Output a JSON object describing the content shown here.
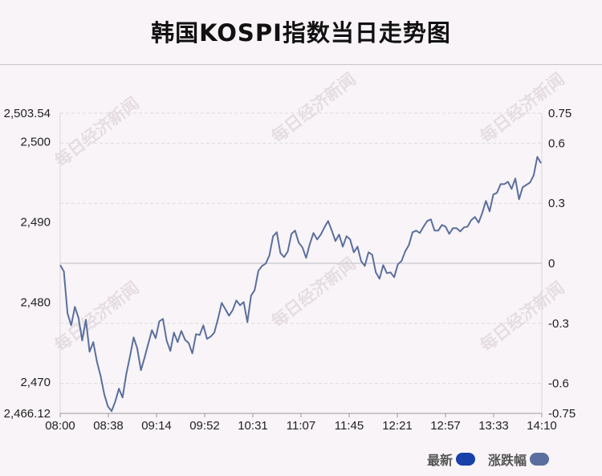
{
  "title": "韩国KOSPI指数当日走势图",
  "watermark": "每日经济新闻",
  "legend": {
    "latest_label": "最新",
    "change_label": "涨跌幅",
    "latest_color": "#1740a8",
    "change_color": "#5b6f9e"
  },
  "colors": {
    "line": "#5b6f9e",
    "baseline": "#cfcfd6",
    "grid": "#dcdcdc"
  },
  "chart_data": {
    "type": "line",
    "title": "韩国KOSPI指数当日走势图",
    "xlabel": "",
    "ylabel": "",
    "x_ticks": [
      "08:00",
      "08:38",
      "09:14",
      "09:52",
      "10:31",
      "11:07",
      "11:45",
      "12:21",
      "12:57",
      "13:33",
      "14:10"
    ],
    "y_left_ticks": [
      "2,503.54",
      "2,500",
      "2,490",
      "2,480",
      "2,470",
      "2,466.12"
    ],
    "y_left_values": [
      2503.54,
      2500,
      2490,
      2480,
      2470,
      2466.12
    ],
    "y_right_ticks": [
      "0.75",
      "0.6",
      "0.3",
      "0",
      "-0.3",
      "-0.6",
      "-0.75"
    ],
    "y_right_values": [
      0.75,
      0.6,
      0.3,
      0,
      -0.3,
      -0.6,
      -0.75
    ],
    "ylim": [
      2466.12,
      2503.54
    ],
    "change_lim": [
      -0.75,
      0.75
    ],
    "grid": true,
    "series": [
      {
        "values": [
          2484.6,
          2483.8,
          2478.6,
          2477.1,
          2479.4,
          2478.0,
          2475.2,
          2477.8,
          2473.8,
          2475.0,
          2472.6,
          2470.8,
          2468.5,
          2467.0,
          2466.4,
          2467.6,
          2469.2,
          2468.1,
          2471.0,
          2473.2,
          2475.6,
          2474.2,
          2471.5,
          2473.1,
          2474.8,
          2476.5,
          2475.5,
          2477.6,
          2477.9,
          2475.2,
          2473.9,
          2476.2,
          2475.0,
          2476.4,
          2475.3,
          2474.9,
          2473.6,
          2476.0,
          2475.9,
          2477.1,
          2475.4,
          2475.7,
          2476.2,
          2477.9,
          2479.9,
          2479.1,
          2478.3,
          2479.0,
          2480.2,
          2479.6,
          2480.0,
          2477.5,
          2480.8,
          2481.5,
          2483.9,
          2484.5,
          2484.8,
          2485.8,
          2488.2,
          2488.7,
          2486.1,
          2485.6,
          2486.3,
          2488.5,
          2488.9,
          2487.4,
          2486.8,
          2485.5,
          2487.2,
          2488.6,
          2487.8,
          2488.4,
          2489.3,
          2490.1,
          2488.9,
          2487.6,
          2488.4,
          2486.9,
          2488.2,
          2487.8,
          2486.2,
          2486.9,
          2485.1,
          2484.5,
          2486.2,
          2485.9,
          2483.7,
          2482.9,
          2484.6,
          2483.6,
          2483.7,
          2483.1,
          2484.7,
          2485.1,
          2486.3,
          2487.1,
          2488.7,
          2488.9,
          2488.6,
          2489.4,
          2490.1,
          2490.3,
          2488.9,
          2488.9,
          2489.6,
          2489.4,
          2488.5,
          2489.2,
          2489.2,
          2488.8,
          2489.3,
          2489.4,
          2490.2,
          2490.6,
          2489.9,
          2491.1,
          2492.6,
          2491.3,
          2493.4,
          2493.6,
          2494.7,
          2494.7,
          2495.0,
          2494.1,
          2495.4,
          2492.8,
          2494.3,
          2494.6,
          2494.9,
          2495.8,
          2498.1,
          2497.3
        ]
      }
    ]
  }
}
